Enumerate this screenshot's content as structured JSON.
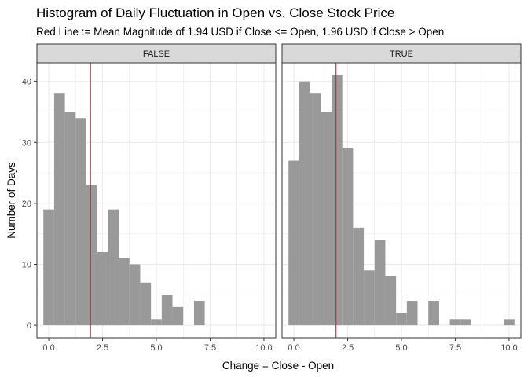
{
  "chart_data": {
    "type": "bar",
    "title": "Histogram of Daily Fluctuation in Open vs. Close Stock Price",
    "subtitle": "Red Line := Mean Magnitude of 1.94 USD if Close <= Open, 1.96 USD if Close > Open",
    "xlabel": "Change = Close - Open",
    "ylabel": "Number of Days",
    "xlim": [
      -0.55,
      10.55
    ],
    "ylim": [
      -2.05,
      43.05
    ],
    "x_ticks": [
      0,
      2.5,
      5,
      7.5,
      10
    ],
    "x_tick_labels": [
      "0.0",
      "2.5",
      "5.0",
      "7.5",
      "10.0"
    ],
    "y_ticks": [
      0,
      10,
      20,
      30,
      40
    ],
    "y_tick_labels": [
      "0",
      "10",
      "20",
      "30",
      "40"
    ],
    "grid": true,
    "bin_width": 0.5,
    "panels": [
      {
        "label": "FALSE",
        "mean_line": 1.94,
        "bins": [
          {
            "x": 0.0,
            "count": 19
          },
          {
            "x": 0.5,
            "count": 38
          },
          {
            "x": 1.0,
            "count": 35
          },
          {
            "x": 1.5,
            "count": 34
          },
          {
            "x": 2.0,
            "count": 23
          },
          {
            "x": 2.5,
            "count": 12
          },
          {
            "x": 3.0,
            "count": 19
          },
          {
            "x": 3.5,
            "count": 11
          },
          {
            "x": 4.0,
            "count": 10
          },
          {
            "x": 4.5,
            "count": 7
          },
          {
            "x": 5.0,
            "count": 1
          },
          {
            "x": 5.5,
            "count": 5
          },
          {
            "x": 6.0,
            "count": 3
          },
          {
            "x": 6.5,
            "count": 0
          },
          {
            "x": 7.0,
            "count": 4
          }
        ]
      },
      {
        "label": "TRUE",
        "mean_line": 1.96,
        "bins": [
          {
            "x": 0.0,
            "count": 27
          },
          {
            "x": 0.5,
            "count": 40
          },
          {
            "x": 1.0,
            "count": 38
          },
          {
            "x": 1.5,
            "count": 35
          },
          {
            "x": 2.0,
            "count": 41
          },
          {
            "x": 2.5,
            "count": 29
          },
          {
            "x": 3.0,
            "count": 16
          },
          {
            "x": 3.5,
            "count": 9
          },
          {
            "x": 4.0,
            "count": 14
          },
          {
            "x": 4.5,
            "count": 8
          },
          {
            "x": 5.0,
            "count": 2
          },
          {
            "x": 5.5,
            "count": 4
          },
          {
            "x": 6.0,
            "count": 0
          },
          {
            "x": 6.5,
            "count": 4
          },
          {
            "x": 7.0,
            "count": 0
          },
          {
            "x": 7.5,
            "count": 1
          },
          {
            "x": 8.0,
            "count": 1
          },
          {
            "x": 8.5,
            "count": 0
          },
          {
            "x": 9.0,
            "count": 0
          },
          {
            "x": 9.5,
            "count": 0
          },
          {
            "x": 10.0,
            "count": 1
          }
        ]
      }
    ],
    "colors": {
      "bar_fill": "#999999",
      "mean_line": "#cc2222",
      "strip_fill": "#d9d9d9",
      "panel_border": "#333333",
      "grid": "#ebebeb"
    }
  }
}
